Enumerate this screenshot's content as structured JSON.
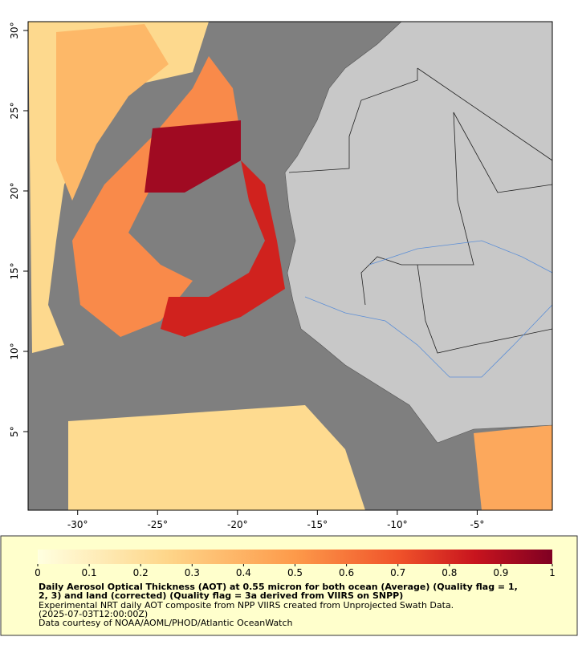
{
  "map": {
    "xlim": [
      -33.1,
      -0.3
    ],
    "ylim": [
      0.1,
      30.55
    ],
    "xticks": [
      {
        "value": -30,
        "label": "-30°"
      },
      {
        "value": -25,
        "label": "-25°"
      },
      {
        "value": -20,
        "label": "-20°"
      },
      {
        "value": -15,
        "label": "-15°"
      },
      {
        "value": -10,
        "label": "-10°"
      },
      {
        "value": -5,
        "label": "-5°"
      }
    ],
    "yticks": [
      {
        "value": 5,
        "label": "5°"
      },
      {
        "value": 10,
        "label": "10°"
      },
      {
        "value": 15,
        "label": "15°"
      },
      {
        "value": 20,
        "label": "20°"
      },
      {
        "value": 25,
        "label": "25°"
      },
      {
        "value": 30,
        "label": "30°"
      }
    ]
  },
  "colorbar": {
    "lim": [
      0,
      1
    ],
    "ticks": [
      0,
      0.1,
      0.2,
      0.3,
      0.4,
      0.5,
      0.6,
      0.7,
      0.8,
      0.9,
      1
    ]
  },
  "caption": {
    "title_lines": [
      "Daily Aerosol Optical Thickness (AOT) at 0.55 micron for both ocean (Average) (Quality flag = 1,",
      "2, 3) and land (corrected) (Quality flag = 3a derived from VIIRS on SNPP)"
    ],
    "lines": [
      "Experimental NRT daily AOT composite from NPP VIIRS created from Unprojected Swath Data.",
      "(2025-07-03T12:00:00Z)",
      "Data courtesy of NOAA/AOML/PHOD/Atlantic OceanWatch"
    ]
  }
}
